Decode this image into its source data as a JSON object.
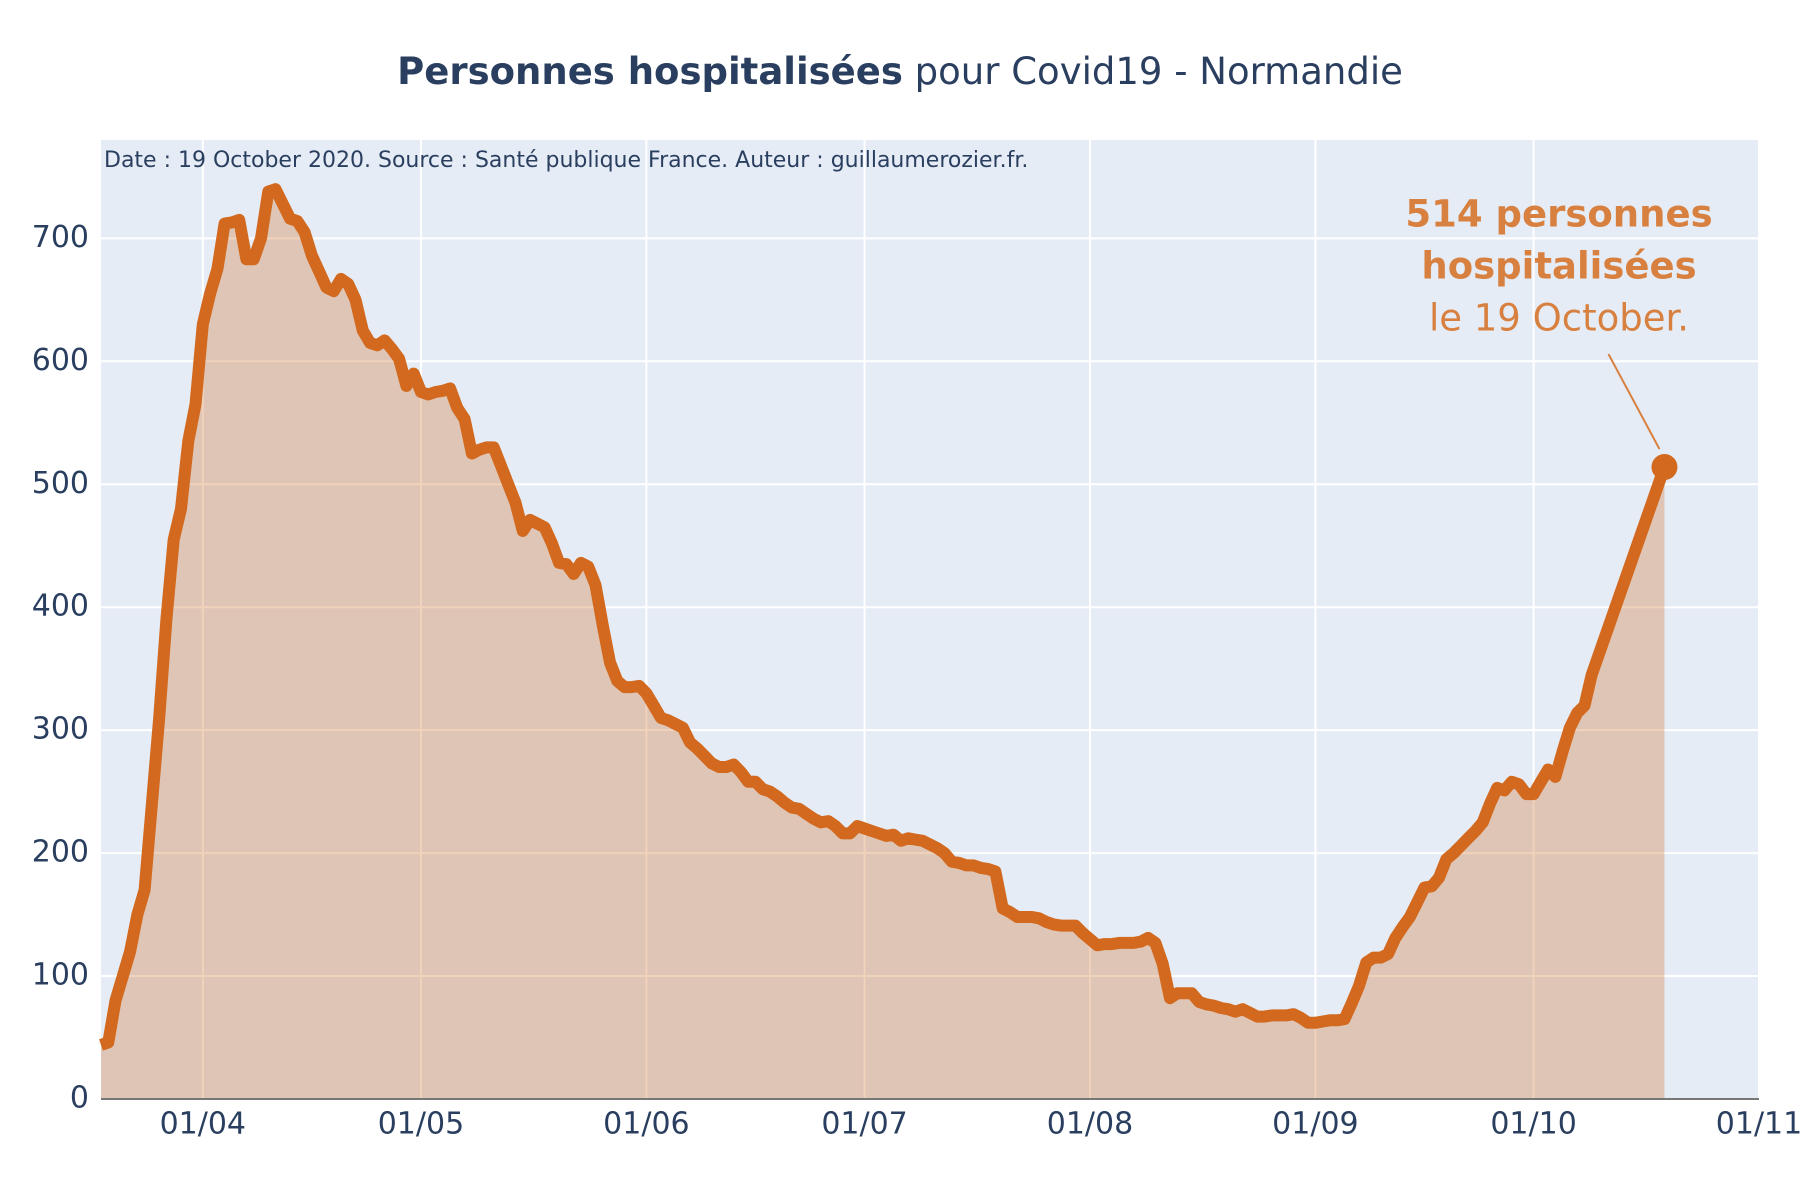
{
  "chart_data": {
    "type": "area-line",
    "title": {
      "bold": "Personnes hospitalisées",
      "rest": "pour Covid19 - Normandie"
    },
    "note": "Date : 19 October 2020. Source : Santé publique France. Auteur : guillaumerozier.fr.",
    "annotation": [
      "514 personnes",
      "hospitalisées",
      "le 19 October."
    ],
    "color": "#d2691e",
    "fill_color": "rgba(210,105,30,0.3)",
    "annotation_color": "#d8803f",
    "plot_bg": "#e5ecf6",
    "grid": true,
    "xlim": [
      "2020-03-18",
      "2020-11-01"
    ],
    "xticks": [
      {
        "value": "2020-04-01",
        "label": "01/04"
      },
      {
        "value": "2020-05-01",
        "label": "01/05"
      },
      {
        "value": "2020-06-01",
        "label": "01/06"
      },
      {
        "value": "2020-07-01",
        "label": "01/07"
      },
      {
        "value": "2020-08-01",
        "label": "01/08"
      },
      {
        "value": "2020-09-01",
        "label": "01/09"
      },
      {
        "value": "2020-10-01",
        "label": "01/10"
      },
      {
        "value": "2020-11-01",
        "label": "01/11"
      }
    ],
    "ylim": [
      0,
      780
    ],
    "yticks": [
      0,
      100,
      200,
      300,
      400,
      500,
      600,
      700
    ],
    "x": [
      "2020-03-18",
      "2020-03-19",
      "2020-03-20",
      "2020-03-21",
      "2020-03-22",
      "2020-03-23",
      "2020-03-24",
      "2020-03-25",
      "2020-03-26",
      "2020-03-27",
      "2020-03-28",
      "2020-03-29",
      "2020-03-30",
      "2020-03-31",
      "2020-04-01",
      "2020-04-02",
      "2020-04-03",
      "2020-04-04",
      "2020-04-05",
      "2020-04-06",
      "2020-04-07",
      "2020-04-08",
      "2020-04-09",
      "2020-04-10",
      "2020-04-11",
      "2020-04-12",
      "2020-04-13",
      "2020-04-14",
      "2020-04-15",
      "2020-04-16",
      "2020-04-17",
      "2020-04-18",
      "2020-04-19",
      "2020-04-20",
      "2020-04-21",
      "2020-04-22",
      "2020-04-23",
      "2020-04-24",
      "2020-04-25",
      "2020-04-26",
      "2020-04-27",
      "2020-04-28",
      "2020-04-29",
      "2020-04-30",
      "2020-05-01",
      "2020-05-02",
      "2020-05-03",
      "2020-05-04",
      "2020-05-05",
      "2020-05-06",
      "2020-05-07",
      "2020-05-08",
      "2020-05-09",
      "2020-05-10",
      "2020-05-11",
      "2020-05-12",
      "2020-05-13",
      "2020-05-14",
      "2020-05-15",
      "2020-05-16",
      "2020-05-17",
      "2020-05-18",
      "2020-05-19",
      "2020-05-20",
      "2020-05-21",
      "2020-05-22",
      "2020-05-23",
      "2020-05-24",
      "2020-05-25",
      "2020-05-26",
      "2020-05-27",
      "2020-05-28",
      "2020-05-29",
      "2020-05-30",
      "2020-05-31",
      "2020-06-01",
      "2020-06-02",
      "2020-06-03",
      "2020-06-04",
      "2020-06-05",
      "2020-06-06",
      "2020-06-07",
      "2020-06-08",
      "2020-06-09",
      "2020-06-10",
      "2020-06-11",
      "2020-06-12",
      "2020-06-13",
      "2020-06-14",
      "2020-06-15",
      "2020-06-16",
      "2020-06-17",
      "2020-06-18",
      "2020-06-19",
      "2020-06-20",
      "2020-06-21",
      "2020-06-22",
      "2020-06-23",
      "2020-06-24",
      "2020-06-25",
      "2020-06-26",
      "2020-06-27",
      "2020-06-28",
      "2020-06-29",
      "2020-06-30",
      "2020-07-01",
      "2020-07-02",
      "2020-07-03",
      "2020-07-04",
      "2020-07-05",
      "2020-07-06",
      "2020-07-07",
      "2020-07-08",
      "2020-07-09",
      "2020-07-10",
      "2020-07-11",
      "2020-07-12",
      "2020-07-13",
      "2020-07-14",
      "2020-07-15",
      "2020-07-16",
      "2020-07-17",
      "2020-07-18",
      "2020-07-19",
      "2020-07-20",
      "2020-07-21",
      "2020-07-22",
      "2020-07-23",
      "2020-07-24",
      "2020-07-25",
      "2020-07-26",
      "2020-07-27",
      "2020-07-28",
      "2020-07-29",
      "2020-07-30",
      "2020-07-31",
      "2020-08-01",
      "2020-08-02",
      "2020-08-03",
      "2020-08-04",
      "2020-08-05",
      "2020-08-06",
      "2020-08-07",
      "2020-08-08",
      "2020-08-09",
      "2020-08-10",
      "2020-08-11",
      "2020-08-12",
      "2020-08-13",
      "2020-08-14",
      "2020-08-15",
      "2020-08-16",
      "2020-08-17",
      "2020-08-18",
      "2020-08-19",
      "2020-08-20",
      "2020-08-21",
      "2020-08-22",
      "2020-08-23",
      "2020-08-24",
      "2020-08-25",
      "2020-08-26",
      "2020-08-27",
      "2020-08-28",
      "2020-08-29",
      "2020-08-30",
      "2020-08-31",
      "2020-09-01",
      "2020-09-02",
      "2020-09-03",
      "2020-09-04",
      "2020-09-05",
      "2020-09-06",
      "2020-09-07",
      "2020-09-08",
      "2020-09-09",
      "2020-09-10",
      "2020-09-11",
      "2020-09-12",
      "2020-09-13",
      "2020-09-14",
      "2020-09-15",
      "2020-09-16",
      "2020-09-17",
      "2020-09-18",
      "2020-09-19",
      "2020-09-20",
      "2020-09-21",
      "2020-09-22",
      "2020-09-23",
      "2020-09-24",
      "2020-09-25",
      "2020-09-26",
      "2020-09-27",
      "2020-09-28",
      "2020-09-29",
      "2020-09-30",
      "2020-10-01",
      "2020-10-02",
      "2020-10-03",
      "2020-10-04",
      "2020-10-05",
      "2020-10-06",
      "2020-10-07",
      "2020-10-08",
      "2020-10-09",
      "2020-10-19"
    ],
    "values": [
      44,
      46,
      80,
      100,
      120,
      150,
      170,
      240,
      310,
      390,
      455,
      480,
      535,
      565,
      630,
      655,
      675,
      712,
      713,
      715,
      683,
      683,
      700,
      738,
      740,
      728,
      716,
      714,
      705,
      686,
      673,
      660,
      657,
      667,
      663,
      650,
      625,
      615,
      613,
      617,
      610,
      602,
      580,
      590,
      575,
      573,
      575,
      576,
      578,
      562,
      553,
      525,
      528,
      530,
      530,
      515,
      500,
      485,
      462,
      471,
      468,
      465,
      452,
      436,
      435,
      427,
      436,
      433,
      418,
      385,
      355,
      340,
      335,
      335,
      336,
      330,
      320,
      310,
      308,
      305,
      302,
      290,
      285,
      279,
      273,
      270,
      270,
      272,
      266,
      258,
      258,
      252,
      250,
      246,
      241,
      237,
      236,
      232,
      228,
      225,
      226,
      222,
      216,
      216,
      222,
      220,
      218,
      216,
      214,
      215,
      210,
      212,
      211,
      210,
      207,
      204,
      200,
      193,
      192,
      190,
      190,
      188,
      187,
      185,
      155,
      152,
      148,
      148,
      148,
      147,
      144,
      142,
      141,
      141,
      141,
      135,
      130,
      125,
      126,
      126,
      127,
      127,
      127,
      128,
      131,
      127,
      110,
      82,
      86,
      86,
      86,
      79,
      77,
      76,
      74,
      73,
      71,
      73,
      70,
      67,
      67,
      68,
      68,
      68,
      69,
      66,
      62,
      62,
      63,
      64,
      64,
      65,
      78,
      92,
      111,
      115,
      115,
      118,
      131,
      140,
      148,
      160,
      172,
      173,
      180,
      195,
      200,
      206,
      212,
      218,
      225,
      240,
      253,
      251,
      258,
      256,
      248,
      248,
      258,
      268,
      262,
      283,
      302,
      314,
      320,
      345,
      514
    ]
  }
}
